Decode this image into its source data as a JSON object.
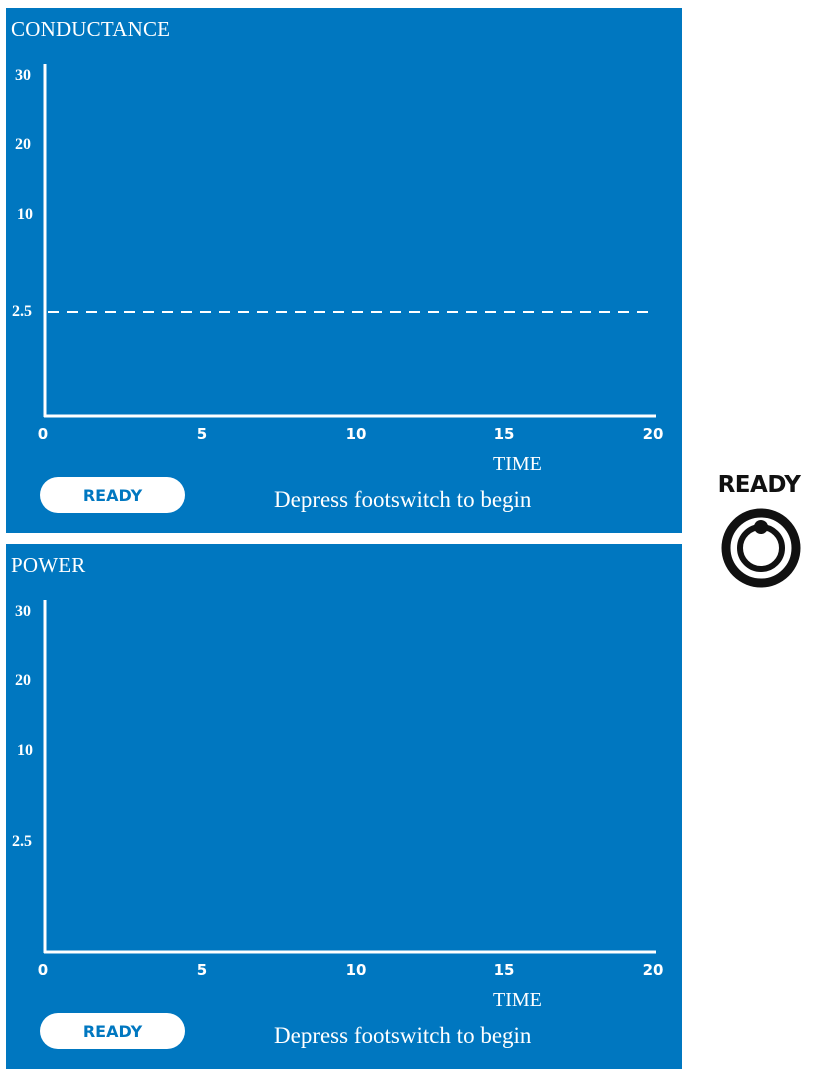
{
  "panels": [
    {
      "title": "CONDUCTANCE",
      "y_ticks": [
        "30",
        "20",
        "10",
        "2.5"
      ],
      "x_ticks": [
        "0",
        "5",
        "10",
        "15",
        "20"
      ],
      "x_title": "TIME",
      "threshold_dashed": true,
      "status_button": "READY",
      "prompt": "Depress footswitch to begin"
    },
    {
      "title": "POWER",
      "y_ticks": [
        "30",
        "20",
        "10",
        "2.5"
      ],
      "x_ticks": [
        "0",
        "5",
        "10",
        "15",
        "20"
      ],
      "x_title": "TIME",
      "threshold_dashed": false,
      "status_button": "READY",
      "prompt": "Depress footswitch to begin"
    }
  ],
  "side_indicator": {
    "label": "READY",
    "icon": "power-ring-icon"
  },
  "colors": {
    "panel_bg": "#0077c0",
    "foreground": "#ffffff",
    "indicator": "#111111"
  }
}
